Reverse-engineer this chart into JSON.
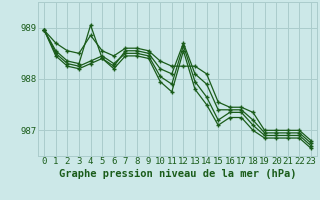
{
  "title": "Graphe pression niveau de la mer (hPa)",
  "bg_color": "#cce8e8",
  "grid_color": "#aacccc",
  "line_color": "#1a5c1a",
  "xlim": [
    -0.5,
    23.5
  ],
  "ylim": [
    986.5,
    989.5
  ],
  "yticks": [
    987,
    988,
    989
  ],
  "xticks": [
    0,
    1,
    2,
    3,
    4,
    5,
    6,
    7,
    8,
    9,
    10,
    11,
    12,
    13,
    14,
    15,
    16,
    17,
    18,
    19,
    20,
    21,
    22,
    23
  ],
  "series": [
    [
      988.95,
      988.7,
      988.55,
      988.5,
      988.85,
      988.55,
      988.45,
      988.6,
      988.6,
      988.55,
      988.35,
      988.25,
      988.25,
      988.25,
      988.1,
      987.55,
      987.45,
      987.45,
      987.35,
      987.0,
      987.0,
      987.0,
      987.0,
      986.8
    ],
    [
      988.95,
      988.55,
      988.35,
      988.3,
      989.05,
      988.4,
      988.25,
      988.55,
      988.55,
      988.5,
      988.2,
      988.1,
      988.7,
      988.1,
      987.9,
      987.4,
      987.4,
      987.4,
      987.2,
      986.95,
      986.95,
      986.95,
      986.95,
      986.75
    ],
    [
      988.95,
      988.5,
      988.3,
      988.25,
      988.35,
      988.45,
      988.3,
      988.5,
      988.5,
      988.45,
      988.05,
      987.9,
      988.65,
      987.95,
      987.65,
      987.2,
      987.35,
      987.35,
      987.1,
      986.9,
      986.9,
      986.9,
      986.9,
      986.7
    ],
    [
      988.95,
      988.45,
      988.25,
      988.2,
      988.3,
      988.4,
      988.2,
      988.45,
      988.45,
      988.4,
      987.95,
      987.75,
      988.55,
      987.8,
      987.5,
      987.1,
      987.25,
      987.25,
      987.0,
      986.85,
      986.85,
      986.85,
      986.85,
      986.65
    ]
  ],
  "tick_fontsize": 6.5,
  "title_fontsize": 7.5
}
